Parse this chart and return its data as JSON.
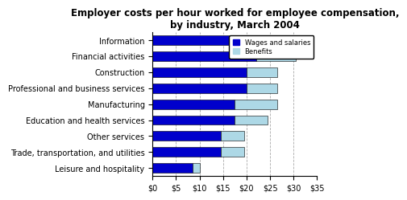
{
  "title": "Employer costs per hour worked for employee compensation,\nby industry, March 2004",
  "categories": [
    "Information",
    "Financial activities",
    "Construction",
    "Professional and business services",
    "Manufacturing",
    "Education and health services",
    "Other services",
    "Trade, transportation, and utilities",
    "Leisure and hospitality"
  ],
  "wages": [
    25.5,
    22.0,
    20.0,
    20.0,
    17.5,
    17.5,
    14.5,
    14.5,
    8.5
  ],
  "benefits": [
    7.5,
    8.5,
    6.5,
    6.5,
    9.0,
    7.0,
    5.0,
    5.0,
    1.5
  ],
  "wages_color": "#0000CC",
  "benefits_color": "#ADD8E6",
  "xlim": [
    0,
    35
  ],
  "xticks": [
    0,
    5,
    10,
    15,
    20,
    25,
    30,
    35
  ],
  "xticklabels": [
    "$0",
    "$5",
    "$10",
    "$15",
    "$20",
    "$25",
    "$30",
    "$35"
  ],
  "legend_labels": [
    "Wages and salaries",
    "Benefits"
  ],
  "title_fontsize": 8.5,
  "tick_fontsize": 7,
  "label_fontsize": 7,
  "bg_color": "#FFFFFF",
  "grid_color": "#AAAAAA"
}
